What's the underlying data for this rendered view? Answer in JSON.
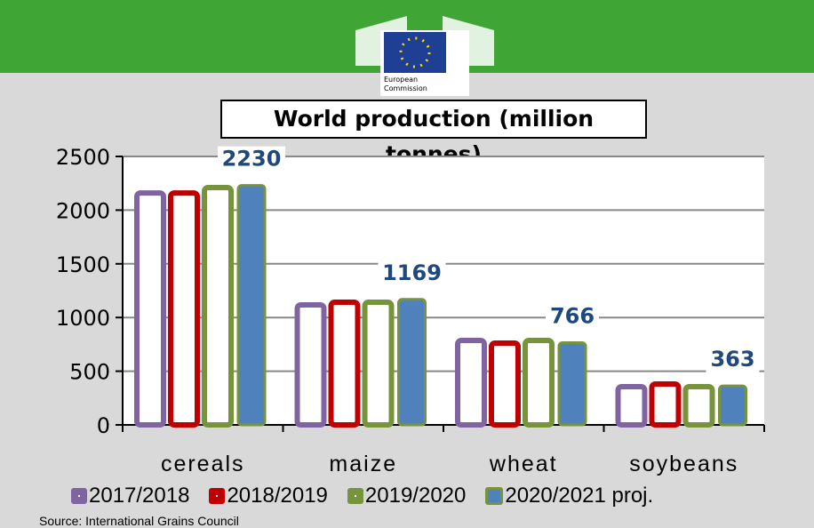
{
  "header": {
    "logo_text": "European Commission"
  },
  "chart_data": {
    "type": "bar",
    "title": "World production (million tonnes)",
    "categories": [
      "cereals",
      "maize",
      "wheat",
      "soybeans"
    ],
    "series": [
      {
        "name": "2017/2018",
        "color": "#8064a2",
        "filled": false,
        "values": [
          2160,
          1118,
          786,
          356
        ]
      },
      {
        "name": "2018/2019",
        "color": "#c00000",
        "filled": false,
        "values": [
          2160,
          1142,
          762,
          381
        ]
      },
      {
        "name": "2019/2020",
        "color": "#77933c",
        "filled": false,
        "values": [
          2210,
          1142,
          786,
          356
        ]
      },
      {
        "name": "2020/2021 proj.",
        "color": "#4f81bd",
        "border": "#77933c",
        "filled": true,
        "values": [
          2230,
          1169,
          766,
          363
        ]
      }
    ],
    "data_labels": [
      "2230",
      "1169",
      "766",
      "363"
    ],
    "yticks": [
      0,
      500,
      1000,
      1500,
      2000,
      2500
    ],
    "ylim": [
      0,
      2500
    ],
    "grid": true,
    "legend": "bottom",
    "label_color": "#1f497d"
  },
  "source": "Source: International Grains Council"
}
